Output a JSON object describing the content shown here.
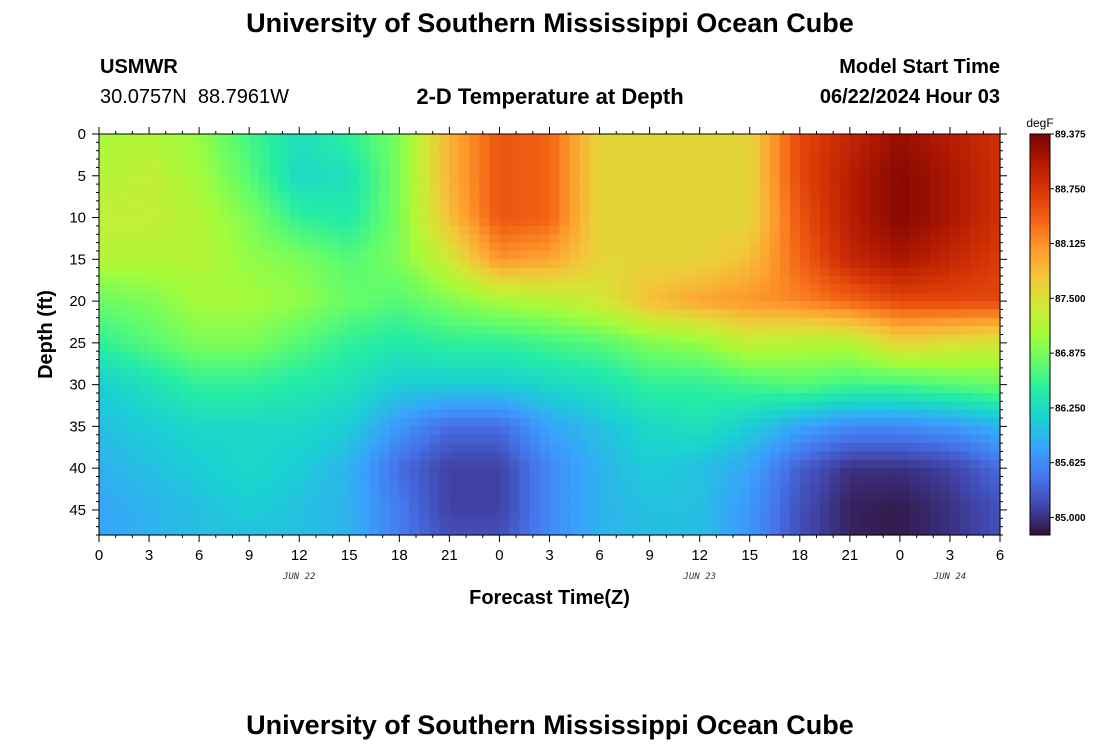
{
  "page": {
    "title": "University of Southern Mississippi Ocean Cube",
    "title_repeat": "University of Southern Mississippi Ocean Cube",
    "station_id": "USMWR",
    "station_coords": "30.0757N  88.7961W",
    "subtitle": "2-D Temperature at Depth",
    "model_start_label": "Model Start Time",
    "model_start_value": "06/22/2024 Hour 03"
  },
  "chart_data": {
    "type": "heatmap",
    "title": "2-D Temperature at Depth",
    "xlabel": "Forecast Time(Z)",
    "ylabel": "Depth (ft)",
    "x_unit": "forecast hours from 00Z Jun 22",
    "x_ticks": [
      0,
      3,
      6,
      9,
      12,
      15,
      18,
      21,
      24,
      27,
      30,
      33,
      36,
      39,
      42,
      45,
      48,
      51,
      54
    ],
    "x_tick_labels": [
      "0",
      "3",
      "6",
      "9",
      "12",
      "15",
      "18",
      "21",
      "0",
      "3",
      "6",
      "9",
      "12",
      "15",
      "18",
      "21",
      "0",
      "3",
      "6"
    ],
    "date_labels": [
      {
        "x": 12,
        "text": "JUN 22"
      },
      {
        "x": 36,
        "text": "JUN 23"
      },
      {
        "x": 51,
        "text": "JUN 24"
      }
    ],
    "xlim": [
      0,
      54
    ],
    "y_ticks": [
      0,
      5,
      10,
      15,
      20,
      25,
      30,
      35,
      40,
      45
    ],
    "y_tick_labels": [
      "0",
      "5",
      "10",
      "15",
      "20",
      "25",
      "30",
      "35",
      "40",
      "45"
    ],
    "ylim": [
      0,
      48
    ],
    "y_inverted": true,
    "colorbar": {
      "unit": "degF",
      "range": [
        84.8,
        89.375
      ],
      "tick_values": [
        89.375,
        88.75,
        88.125,
        87.5,
        86.875,
        86.25,
        85.625,
        85.0
      ],
      "tick_labels": [
        "89.375",
        "88.750",
        "88.125",
        "87.500",
        "86.875",
        "86.250",
        "85.625",
        "85.000"
      ],
      "colors": [
        "#30123b",
        "#4145ab",
        "#4675ed",
        "#39a2fc",
        "#1bcfd4",
        "#24eca6",
        "#61fc6c",
        "#a4fc3b",
        "#d1e834",
        "#f3c63a",
        "#fe9b2d",
        "#f36315",
        "#d93806",
        "#b11901",
        "#7a0402"
      ]
    },
    "x_hours": [
      0,
      3,
      6,
      9,
      12,
      15,
      18,
      21,
      24,
      27,
      30,
      33,
      36,
      39,
      42,
      45,
      48,
      51,
      54
    ],
    "depths_ft": [
      0,
      5,
      10,
      15,
      20,
      25,
      30,
      35,
      40,
      45,
      48
    ],
    "values_degF": [
      [
        87.1,
        87.2,
        87.0,
        86.6,
        86.3,
        86.5,
        86.9,
        87.9,
        88.5,
        88.4,
        87.6,
        87.6,
        87.6,
        87.6,
        88.6,
        88.9,
        89.2,
        89.0,
        88.8
      ],
      [
        87.2,
        87.3,
        87.1,
        86.7,
        86.2,
        86.3,
        86.9,
        87.9,
        88.5,
        88.4,
        87.6,
        87.6,
        87.6,
        87.6,
        88.6,
        89.0,
        89.3,
        89.1,
        88.8
      ],
      [
        87.3,
        87.3,
        87.2,
        86.9,
        86.5,
        86.4,
        86.9,
        87.8,
        88.5,
        88.4,
        87.6,
        87.6,
        87.6,
        87.6,
        88.5,
        89.0,
        89.3,
        89.1,
        88.8
      ],
      [
        87.2,
        87.2,
        87.2,
        87.0,
        86.9,
        86.7,
        86.9,
        87.4,
        88.1,
        88.0,
        87.6,
        87.6,
        87.6,
        87.8,
        88.4,
        88.9,
        89.1,
        88.9,
        88.7
      ],
      [
        86.8,
        86.9,
        87.1,
        87.1,
        87.0,
        86.8,
        86.7,
        86.9,
        87.1,
        87.2,
        87.4,
        87.8,
        88.0,
        88.1,
        88.2,
        88.4,
        88.6,
        88.6,
        88.6
      ],
      [
        86.5,
        86.7,
        86.9,
        86.9,
        86.7,
        86.5,
        86.4,
        86.5,
        86.5,
        86.6,
        86.7,
        86.9,
        87.0,
        87.3,
        87.2,
        87.2,
        87.6,
        87.5,
        87.4
      ],
      [
        86.1,
        86.3,
        86.5,
        86.5,
        86.4,
        86.3,
        86.1,
        86.1,
        86.1,
        86.2,
        86.3,
        86.5,
        86.5,
        86.6,
        86.7,
        86.6,
        86.6,
        86.7,
        86.8
      ],
      [
        86.0,
        86.1,
        86.2,
        86.2,
        86.2,
        86.1,
        85.7,
        85.4,
        85.4,
        85.8,
        86.0,
        86.2,
        86.3,
        86.1,
        85.8,
        85.6,
        85.6,
        85.7,
        85.9
      ],
      [
        85.9,
        86.0,
        86.1,
        86.2,
        86.1,
        85.9,
        85.4,
        85.1,
        85.1,
        85.6,
        85.9,
        86.1,
        86.0,
        85.8,
        85.3,
        85.0,
        85.0,
        85.1,
        85.4
      ],
      [
        85.8,
        85.9,
        86.0,
        86.1,
        86.0,
        85.9,
        85.5,
        85.1,
        85.1,
        85.6,
        85.9,
        86.0,
        86.0,
        85.7,
        85.2,
        84.9,
        84.85,
        85.0,
        85.2
      ],
      [
        85.8,
        85.9,
        86.0,
        86.0,
        86.0,
        85.9,
        85.5,
        85.2,
        85.2,
        85.6,
        85.9,
        86.0,
        86.0,
        85.7,
        85.2,
        84.9,
        84.85,
        85.0,
        85.2
      ]
    ]
  }
}
